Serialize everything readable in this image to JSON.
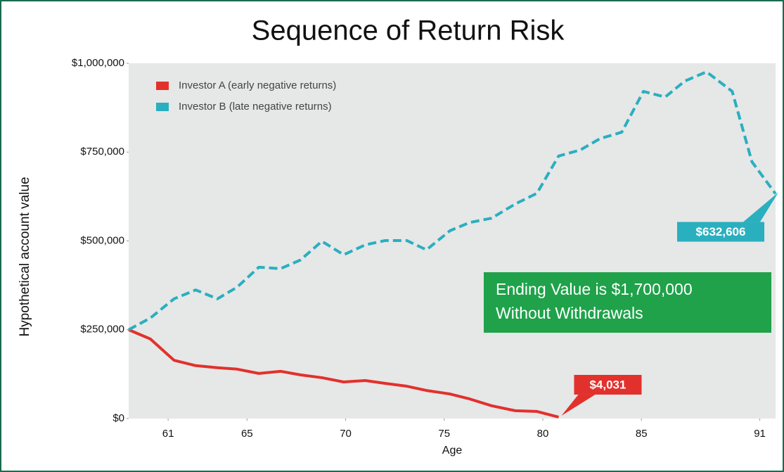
{
  "chart_data": {
    "type": "line",
    "title": "Sequence of Return Risk",
    "x_label": "Age",
    "y_label": "Hypothetical account value",
    "x": [
      59,
      60.1,
      61.3,
      62.4,
      63.5,
      64.5,
      65.6,
      66.7,
      67.7,
      68.8,
      69.9,
      71,
      72,
      73.1,
      74.1,
      75.3,
      76.3,
      77.4,
      78.6,
      79.7,
      80.8,
      81.9,
      82.9,
      84,
      85.1,
      86.2,
      87.2,
      88.3,
      89.6,
      90.6,
      91.8
    ],
    "series": [
      {
        "name": "Investor A (early negative returns)",
        "color": "#e2312c",
        "linestyle": "solid",
        "values": [
          250000,
          224000,
          164000,
          149000,
          143000,
          139000,
          127000,
          133000,
          123000,
          115000,
          103000,
          107000,
          99000,
          91000,
          79000,
          69000,
          55000,
          36000,
          22000,
          20000,
          4031,
          null,
          null,
          null,
          null,
          null,
          null,
          null,
          null,
          null,
          null
        ],
        "value_labels": [
          null,
          null,
          null,
          null,
          null,
          null,
          null,
          null,
          null,
          null,
          null,
          null,
          null,
          null,
          null,
          null,
          null,
          null,
          null,
          null,
          "$4,031",
          null,
          null,
          null,
          null,
          null,
          null,
          null,
          null,
          null,
          null
        ]
      },
      {
        "name": "Investor B (late negative returns)",
        "color": "#2aafbf",
        "linestyle": "dashed",
        "values": [
          250000,
          283000,
          337000,
          362000,
          337000,
          370000,
          426000,
          422000,
          446000,
          499000,
          461000,
          489000,
          501000,
          501000,
          475000,
          529000,
          552000,
          564000,
          604000,
          634000,
          739000,
          756000,
          788000,
          806000,
          921000,
          905000,
          950000,
          976000,
          921000,
          723000,
          632606
        ],
        "value_labels": [
          null,
          null,
          null,
          null,
          null,
          null,
          null,
          null,
          null,
          null,
          null,
          null,
          null,
          null,
          null,
          null,
          null,
          null,
          null,
          null,
          null,
          null,
          null,
          null,
          null,
          null,
          null,
          null,
          null,
          null,
          "$632,606"
        ]
      }
    ],
    "annotation": [
      "Ending Value is $1,700,000",
      "Without Withdrawals"
    ],
    "annotation_color": "#1fa24a",
    "xlim": [
      59,
      91.8
    ],
    "xticks": [
      61,
      65,
      70,
      75,
      80,
      85,
      91
    ],
    "ylim": [
      0,
      1000000
    ],
    "yticks": [
      {
        "value": 0,
        "label": "$0"
      },
      {
        "value": 250000,
        "label": "$250,000"
      },
      {
        "value": 500000,
        "label": "$500,000"
      },
      {
        "value": 750000,
        "label": "$750,000"
      },
      {
        "value": 1000000,
        "label": "$1,000,000"
      }
    ],
    "legend": "upper left"
  }
}
